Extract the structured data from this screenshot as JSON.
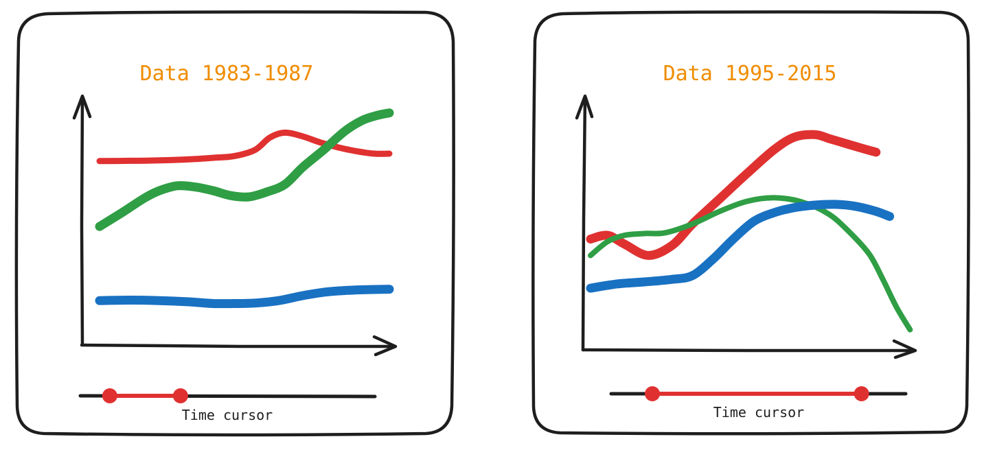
{
  "colors": {
    "ink": "#1e1e1e",
    "title": "#f08c00",
    "red": "#e03131",
    "green": "#2f9e44",
    "blue": "#1971c2"
  },
  "icons": {
    "y_arrow": "up-arrow-icon",
    "x_arrow": "right-arrow-icon",
    "handle": "range-handle-icon"
  },
  "cards": [
    {
      "title": "Data 1983-1987",
      "cursor_label": "Time cursor",
      "time_range": {
        "start": 0.1,
        "end": 0.34
      },
      "chart_data": {
        "type": "line",
        "title": "Data 1983-1987",
        "xlabel": "",
        "ylabel": "",
        "xlim": [
          0,
          1
        ],
        "ylim": [
          0,
          1
        ],
        "grid": false,
        "legend": "none",
        "series": [
          {
            "color": "#e03131",
            "stroke": 9,
            "x": [
              0,
              0.1,
              0.2,
              0.3,
              0.38,
              0.45,
              0.52,
              0.57,
              0.62,
              0.68,
              0.74,
              0.8,
              0.86,
              0.92,
              0.97
            ],
            "y": [
              0.745,
              0.746,
              0.748,
              0.752,
              0.758,
              0.765,
              0.79,
              0.84,
              0.86,
              0.845,
              0.82,
              0.8,
              0.785,
              0.775,
              0.775
            ]
          },
          {
            "color": "#2f9e44",
            "stroke": 13,
            "x": [
              0,
              0.08,
              0.15,
              0.2,
              0.26,
              0.32,
              0.38,
              0.44,
              0.5,
              0.56,
              0.62,
              0.68,
              0.75,
              0.82,
              0.88,
              0.93,
              0.97
            ],
            "y": [
              0.48,
              0.54,
              0.595,
              0.625,
              0.645,
              0.64,
              0.625,
              0.605,
              0.6,
              0.62,
              0.65,
              0.72,
              0.79,
              0.865,
              0.91,
              0.93,
              0.94
            ]
          },
          {
            "color": "#1971c2",
            "stroke": 13,
            "x": [
              0,
              0.1,
              0.2,
              0.3,
              0.38,
              0.45,
              0.52,
              0.6,
              0.68,
              0.76,
              0.84,
              0.92,
              0.97
            ],
            "y": [
              0.18,
              0.182,
              0.18,
              0.175,
              0.168,
              0.168,
              0.17,
              0.18,
              0.2,
              0.215,
              0.222,
              0.225,
              0.226
            ]
          }
        ]
      }
    },
    {
      "title": "Data 1995-2015",
      "cursor_label": "Time cursor",
      "time_range": {
        "start": 0.14,
        "end": 0.85
      },
      "chart_data": {
        "type": "line",
        "title": "Data 1995-2015",
        "xlabel": "",
        "ylabel": "",
        "xlim": [
          0,
          1
        ],
        "ylim": [
          0,
          1
        ],
        "grid": false,
        "legend": "none",
        "series": [
          {
            "color": "#e03131",
            "stroke": 13,
            "x": [
              0,
              0.05,
              0.1,
              0.17,
              0.24,
              0.3,
              0.38,
              0.46,
              0.54,
              0.6,
              0.66,
              0.7,
              0.75,
              0.8,
              0.84
            ],
            "y": [
              0.44,
              0.455,
              0.42,
              0.375,
              0.415,
              0.5,
              0.6,
              0.7,
              0.795,
              0.845,
              0.855,
              0.84,
              0.82,
              0.8,
              0.785
            ]
          },
          {
            "color": "#2f9e44",
            "stroke": 8,
            "x": [
              0,
              0.05,
              0.1,
              0.16,
              0.22,
              0.3,
              0.38,
              0.46,
              0.54,
              0.62,
              0.7,
              0.76,
              0.82,
              0.86,
              0.9,
              0.94
            ],
            "y": [
              0.375,
              0.43,
              0.455,
              0.462,
              0.465,
              0.5,
              0.55,
              0.59,
              0.604,
              0.588,
              0.54,
              0.47,
              0.38,
              0.28,
              0.17,
              0.08
            ]
          },
          {
            "color": "#1971c2",
            "stroke": 13,
            "x": [
              0,
              0.08,
              0.16,
              0.24,
              0.3,
              0.36,
              0.42,
              0.48,
              0.54,
              0.6,
              0.66,
              0.72,
              0.78,
              0.84,
              0.88
            ],
            "y": [
              0.245,
              0.262,
              0.27,
              0.28,
              0.295,
              0.36,
              0.44,
              0.51,
              0.545,
              0.565,
              0.575,
              0.578,
              0.57,
              0.55,
              0.53
            ]
          }
        ]
      }
    }
  ]
}
